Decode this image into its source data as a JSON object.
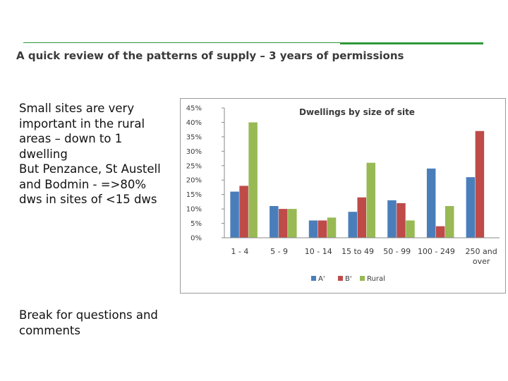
{
  "slide": {
    "title": "A quick review of the patterns of supply – 3 years of permissions",
    "body_lines": [
      "Small sites are very important in the rural areas – down to 1 dwelling",
      "But Penzance, St Austell and Bodmin - =>80% dws in sites of <15 dws"
    ],
    "break_text": "Break for questions and comments",
    "accent_color": "#2f9a3a"
  },
  "chart_data": {
    "type": "bar",
    "title": "Dwellings by size of site",
    "categories": [
      "1 - 4",
      "5 - 9",
      "10 - 14",
      "15 to 49",
      "50 - 99",
      "100 - 249",
      "250 and over"
    ],
    "series": [
      {
        "name": "A'",
        "color": "#4a7ebb",
        "values": [
          16,
          11,
          6,
          9,
          13,
          24,
          21
        ]
      },
      {
        "name": "B'",
        "color": "#be4b48",
        "values": [
          18,
          10,
          6,
          14,
          12,
          4,
          37
        ]
      },
      {
        "name": "Rural",
        "color": "#98b954",
        "values": [
          40,
          10,
          7,
          26,
          6,
          11,
          0
        ]
      }
    ],
    "y_ticks": [
      "0%",
      "5%",
      "10%",
      "15%",
      "20%",
      "25%",
      "30%",
      "35%",
      "40%",
      "45%"
    ],
    "ylim": [
      0,
      45
    ],
    "y_unit": "%",
    "grid": false,
    "legend_position": "bottom"
  }
}
